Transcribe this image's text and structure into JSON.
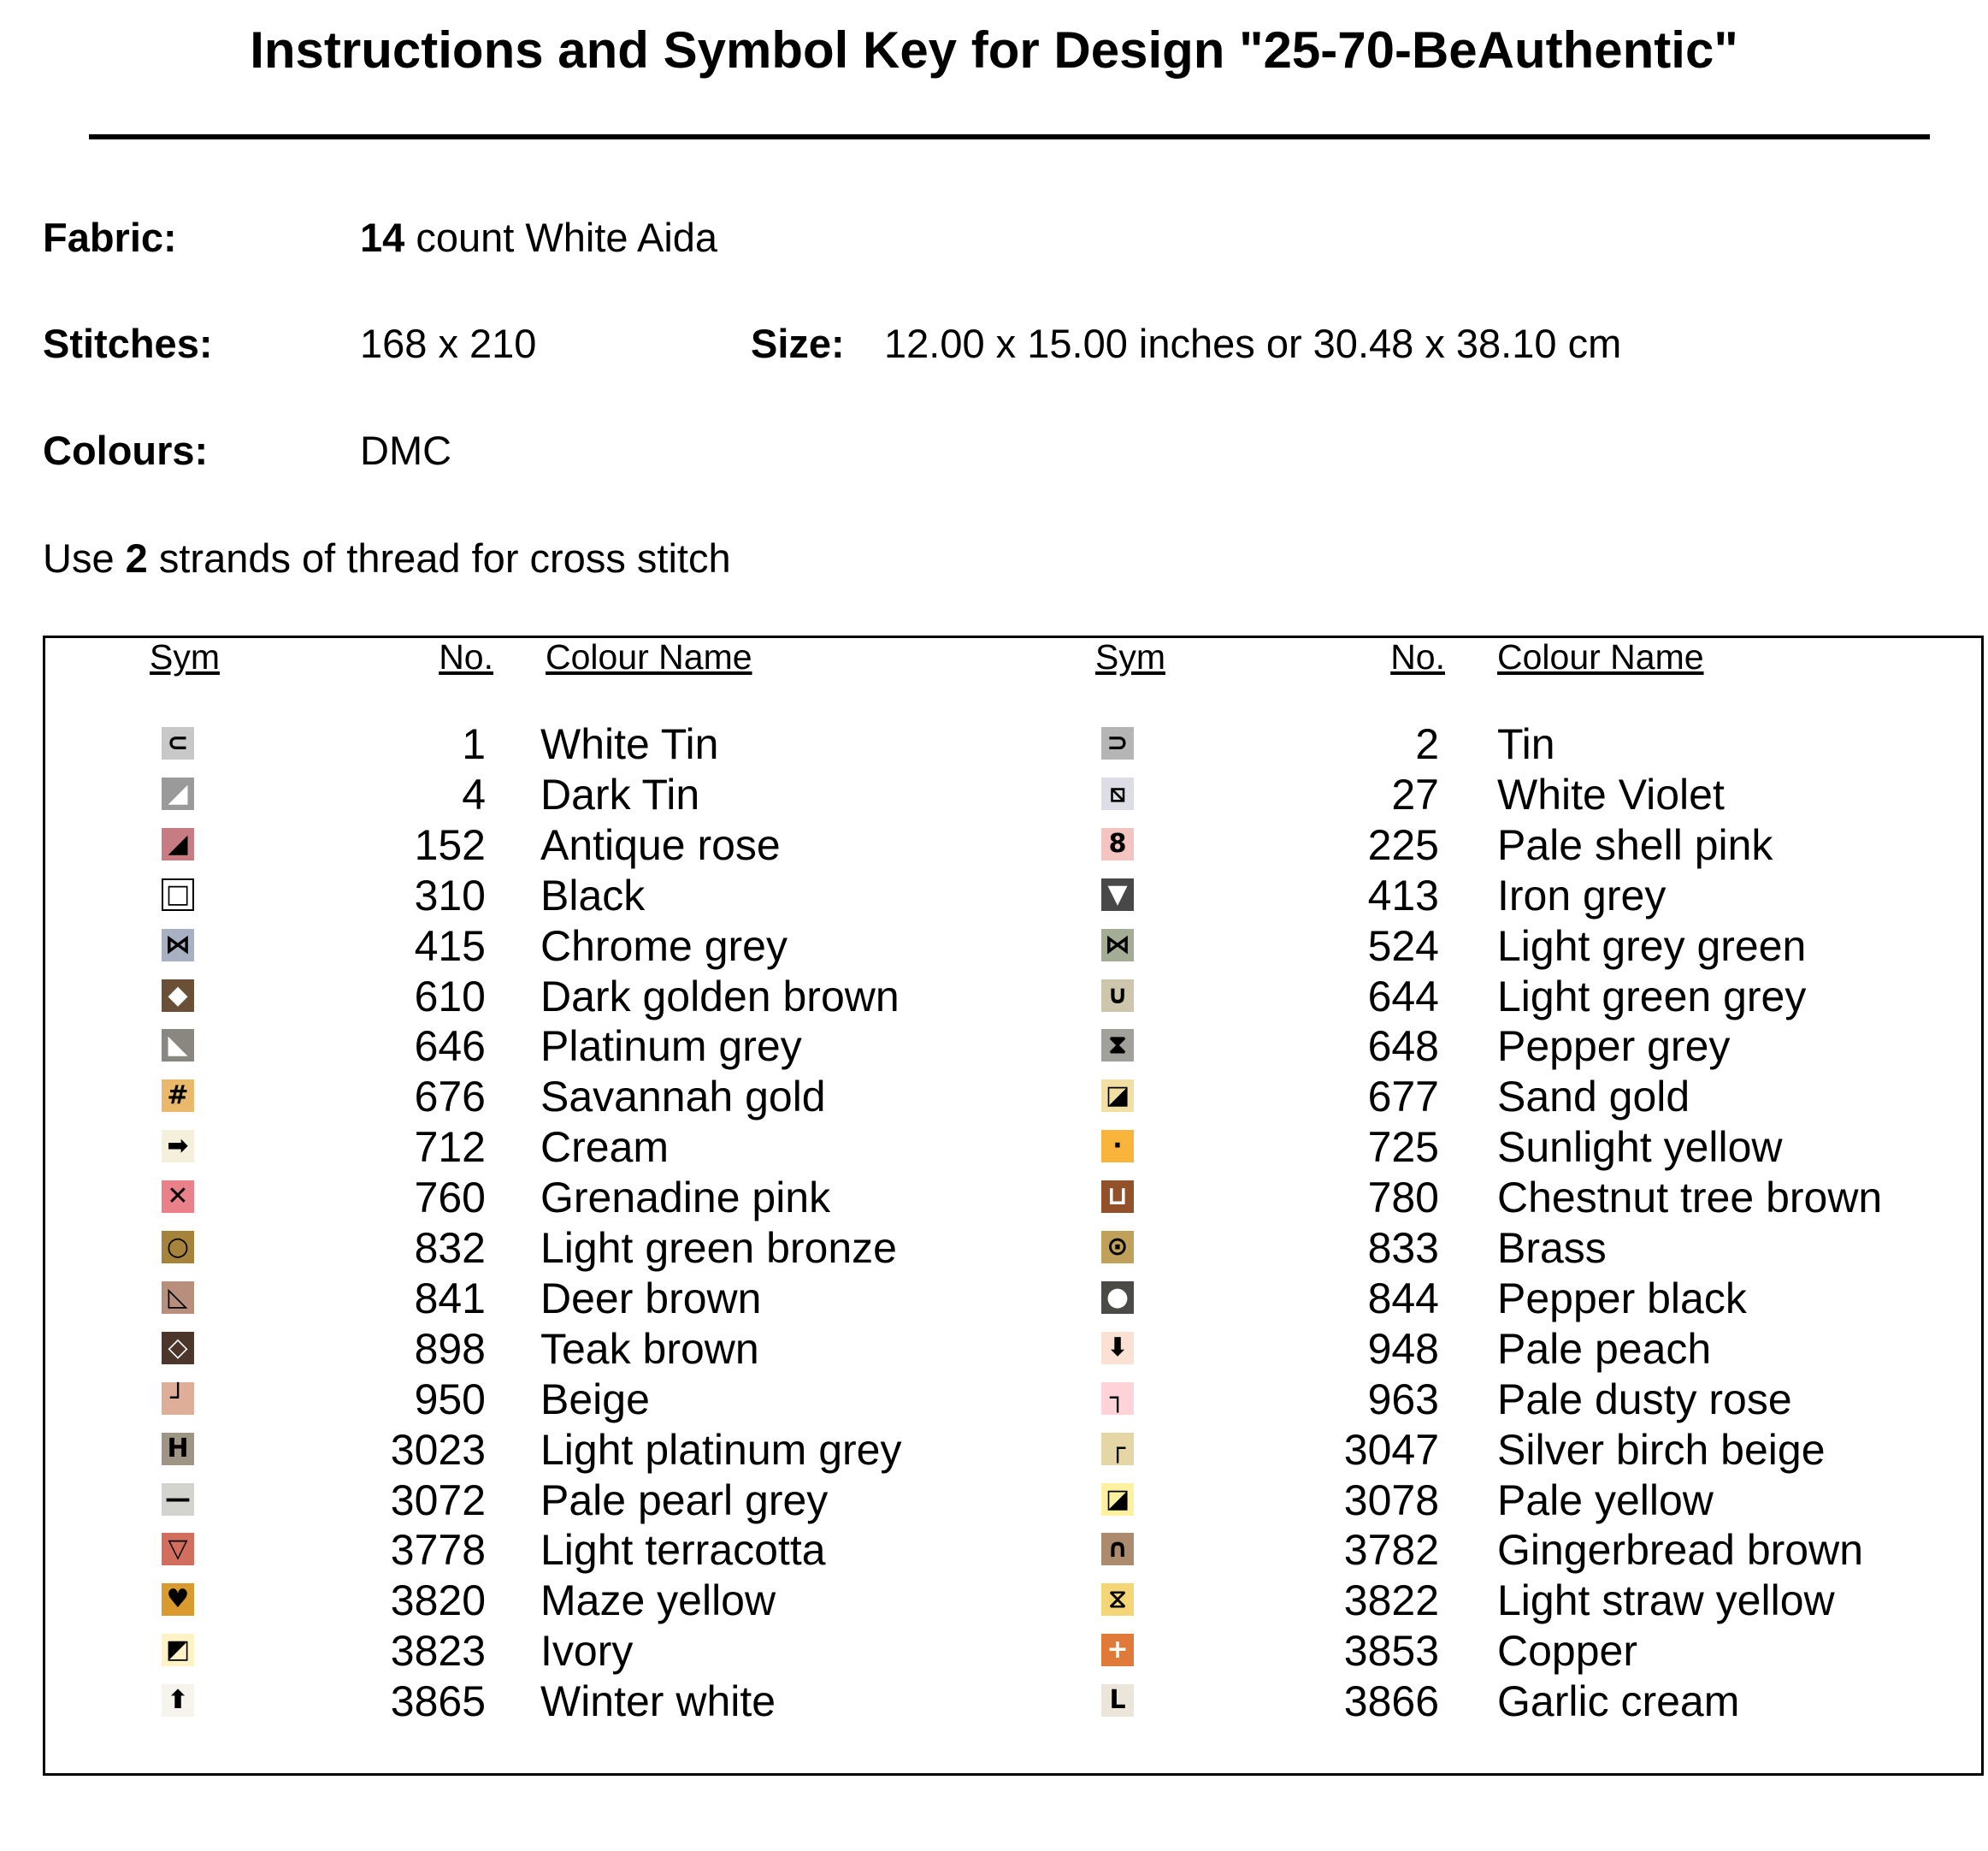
{
  "header": {
    "title": "Instructions and Symbol Key for Design \"25-70-BeAuthentic\""
  },
  "details": {
    "fabric_label": "Fabric:",
    "fabric_count": "14",
    "fabric_text": "count White Aida",
    "stitches_label": "Stitches:",
    "stitches_value": "168 x 210",
    "size_label": "Size:",
    "size_value": "12.00 x 15.00 inches or 30.48 x 38.10 cm",
    "colours_label": "Colours:",
    "colours_value": "DMC",
    "strands_pre": "Use",
    "strands_count": "2",
    "strands_post": "strands of thread for cross stitch"
  },
  "key": {
    "columns": [
      "Sym",
      "No.",
      "Colour Name"
    ],
    "left": [
      {
        "sym": "⊂",
        "color": "#c8c8c8",
        "fg": "#000",
        "no": 1,
        "name": "White Tin"
      },
      {
        "sym": "◢",
        "color": "#9a9a9a",
        "fg": "#fff",
        "no": 4,
        "name": "Dark Tin"
      },
      {
        "sym": "◢",
        "color": "#c77b82",
        "fg": "#000",
        "no": 152,
        "name": "Antique rose"
      },
      {
        "sym": "□",
        "color": "#ffffff",
        "fg": "#000",
        "no": 310,
        "name": "Black"
      },
      {
        "sym": "⋈",
        "color": "#a8b0c4",
        "fg": "#000",
        "no": 415,
        "name": "Chrome grey"
      },
      {
        "sym": "◆",
        "color": "#6b5038",
        "fg": "#fff",
        "no": 610,
        "name": "Dark golden brown"
      },
      {
        "sym": "◣",
        "color": "#8a8680",
        "fg": "#fff",
        "no": 646,
        "name": "Platinum grey"
      },
      {
        "sym": "#",
        "color": "#e9b86a",
        "fg": "#000",
        "no": 676,
        "name": "Savannah gold"
      },
      {
        "sym": "➡",
        "color": "#f5f0dc",
        "fg": "#000",
        "no": 712,
        "name": "Cream"
      },
      {
        "sym": "✕",
        "color": "#e9808a",
        "fg": "#000",
        "no": 760,
        "name": "Grenadine pink"
      },
      {
        "sym": "○",
        "color": "#a5833a",
        "fg": "#000",
        "no": 832,
        "name": "Light green bronze"
      },
      {
        "sym": "◺",
        "color": "#b88f7c",
        "fg": "#000",
        "no": 841,
        "name": "Deer brown"
      },
      {
        "sym": "◇",
        "color": "#4c352b",
        "fg": "#fff",
        "no": 898,
        "name": "Teak brown"
      },
      {
        "sym": "┘",
        "color": "#dfae98",
        "fg": "#000",
        "no": 950,
        "name": "Beige"
      },
      {
        "sym": "H",
        "color": "#9f9584",
        "fg": "#000",
        "no": 3023,
        "name": "Light platinum grey"
      },
      {
        "sym": "—",
        "color": "#d2d4cd",
        "fg": "#000",
        "no": 3072,
        "name": "Pale pearl grey"
      },
      {
        "sym": "▽",
        "color": "#d16e5e",
        "fg": "#000",
        "no": 3778,
        "name": "Light terracotta"
      },
      {
        "sym": "♥",
        "color": "#d99b2e",
        "fg": "#000",
        "no": 3820,
        "name": "Maze yellow"
      },
      {
        "sym": "◩",
        "color": "#fff2c4",
        "fg": "#000",
        "no": 3823,
        "name": "Ivory"
      },
      {
        "sym": "⬆",
        "color": "#f7f4ee",
        "fg": "#000",
        "no": 3865,
        "name": "Winter white"
      }
    ],
    "right": [
      {
        "sym": "⊃",
        "color": "#b5b5b5",
        "fg": "#000",
        "no": 2,
        "name": "Tin"
      },
      {
        "sym": "⧅",
        "color": "#dddde6",
        "fg": "#000",
        "no": 27,
        "name": "White Violet"
      },
      {
        "sym": "8",
        "color": "#f3c4c0",
        "fg": "#000",
        "no": 225,
        "name": "Pale shell pink"
      },
      {
        "sym": "▼",
        "color": "#484848",
        "fg": "#fff",
        "no": 413,
        "name": "Iron grey"
      },
      {
        "sym": "⋈",
        "color": "#a3ad95",
        "fg": "#000",
        "no": 524,
        "name": "Light grey green"
      },
      {
        "sym": "∪",
        "color": "#cdc6ad",
        "fg": "#000",
        "no": 644,
        "name": "Light green grey"
      },
      {
        "sym": "⧗",
        "color": "#a1a09b",
        "fg": "#000",
        "no": 648,
        "name": "Pepper grey"
      },
      {
        "sym": "◪",
        "color": "#f1dfa3",
        "fg": "#000",
        "no": 677,
        "name": "Sand gold"
      },
      {
        "sym": "·",
        "color": "#f8b43b",
        "fg": "#000",
        "no": 725,
        "name": "Sunlight yellow"
      },
      {
        "sym": "⊔",
        "color": "#93512a",
        "fg": "#fff",
        "no": 780,
        "name": "Chestnut tree brown"
      },
      {
        "sym": "⊙",
        "color": "#c1a05a",
        "fg": "#000",
        "no": 833,
        "name": "Brass"
      },
      {
        "sym": "●",
        "color": "#4b4a46",
        "fg": "#fff",
        "no": 844,
        "name": "Pepper black"
      },
      {
        "sym": "⬇",
        "color": "#fbe0d4",
        "fg": "#000",
        "no": 948,
        "name": "Pale peach"
      },
      {
        "sym": "┐",
        "color": "#ffd3d8",
        "fg": "#000",
        "no": 963,
        "name": "Pale dusty rose"
      },
      {
        "sym": "┌",
        "color": "#e5d7a5",
        "fg": "#000",
        "no": 3047,
        "name": "Silver birch beige"
      },
      {
        "sym": "◪",
        "color": "#fff1a0",
        "fg": "#000",
        "no": 3078,
        "name": "Pale yellow"
      },
      {
        "sym": "∩",
        "color": "#ac8a6e",
        "fg": "#000",
        "no": 3782,
        "name": "Gingerbread brown"
      },
      {
        "sym": "⧖",
        "color": "#f5d676",
        "fg": "#000",
        "no": 3822,
        "name": "Light straw yellow"
      },
      {
        "sym": "+",
        "color": "#e07a38",
        "fg": "#fff",
        "no": 3853,
        "name": "Copper"
      },
      {
        "sym": "L",
        "color": "#ece5d9",
        "fg": "#000",
        "no": 3866,
        "name": "Garlic cream"
      }
    ]
  }
}
